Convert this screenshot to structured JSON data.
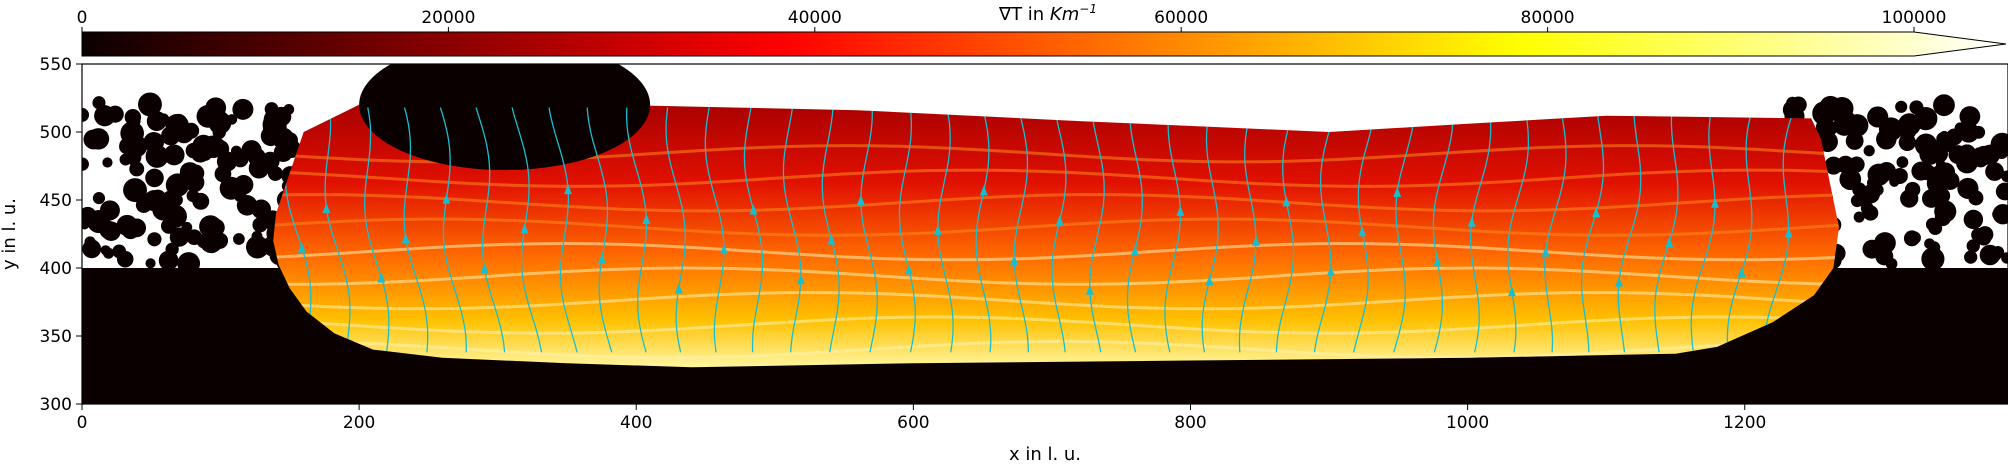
{
  "chart_data": {
    "type": "heatmap",
    "title": "",
    "xlabel": "x in l. u.",
    "ylabel": "y in l. u.",
    "xlim": [
      0,
      1390
    ],
    "ylim": [
      300,
      550
    ],
    "xticks": [
      0,
      200,
      400,
      600,
      800,
      1000,
      1200
    ],
    "yticks": [
      300,
      350,
      400,
      450,
      500,
      550
    ],
    "colorbar": {
      "label_main": "∇T in ",
      "label_unit": "Km",
      "label_exp": "−1",
      "range": [
        0,
        100000
      ],
      "ticks": [
        0,
        20000,
        40000,
        60000,
        80000,
        100000
      ],
      "extend": "max",
      "colormap": "hot",
      "position": "top"
    },
    "regions": [
      {
        "name": "substrate",
        "x": [
          0,
          1390
        ],
        "y": [
          300,
          400
        ]
      },
      {
        "name": "powder-bed",
        "x": [
          0,
          1390
        ],
        "y": [
          400,
          520
        ]
      },
      {
        "name": "melt-pool-field",
        "x": [
          140,
          1270
        ],
        "y": [
          325,
          522
        ]
      }
    ],
    "streamlines": {
      "color": "#17becf",
      "arrows": true
    }
  }
}
